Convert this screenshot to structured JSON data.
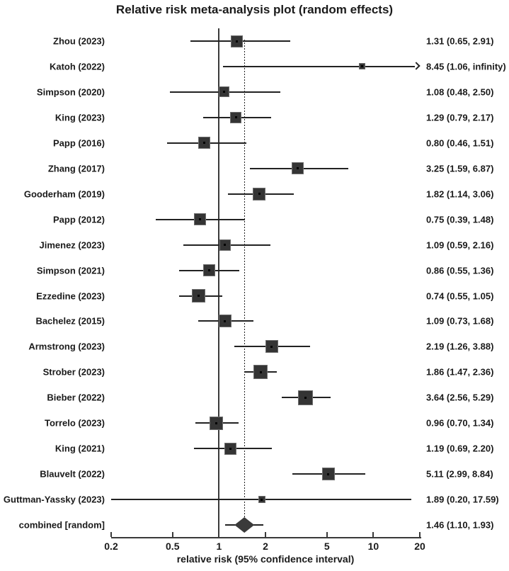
{
  "title": "Relative risk meta-analysis plot (random effects)",
  "colors": {
    "marker_fill": "#343434",
    "marker_border": "#6e6e6e",
    "line": "#222222",
    "text": "#1a1a1a",
    "background": "#ffffff"
  },
  "chart_data": {
    "type": "forest",
    "title": "Relative risk meta-analysis plot (random effects)",
    "xlabel": "relative risk (95% confidence interval)",
    "x_scale": "log",
    "x_range": [
      0.2,
      20
    ],
    "xticks": [
      "0.2",
      "0.5",
      "1",
      "2",
      "5",
      "10",
      "20"
    ],
    "xtick_values": [
      0.2,
      0.5,
      1,
      2,
      5,
      10,
      20
    ],
    "reference_line_x": 1,
    "pooled_dashed_line_x": 1.46,
    "studies": [
      {
        "label": "Zhou (2023)",
        "rr": 1.31,
        "ci_low": 0.65,
        "ci_high": 2.91,
        "value_text": "1.31 (0.65, 2.91)",
        "marker_size": 17,
        "kind": "study"
      },
      {
        "label": "Katoh (2022)",
        "rr": 8.45,
        "ci_low": 1.06,
        "ci_high": null,
        "ci_high_label": "infinity",
        "value_text": "8.45 (1.06, infinity)",
        "marker_size": 9,
        "kind": "study",
        "arrow_right": true
      },
      {
        "label": "Simpson (2020)",
        "rr": 1.08,
        "ci_low": 0.48,
        "ci_high": 2.5,
        "value_text": "1.08 (0.48, 2.50)",
        "marker_size": 15,
        "kind": "study"
      },
      {
        "label": "King (2023)",
        "rr": 1.29,
        "ci_low": 0.79,
        "ci_high": 2.17,
        "value_text": "1.29 (0.79, 2.17)",
        "marker_size": 16,
        "kind": "study"
      },
      {
        "label": "Papp (2016)",
        "rr": 0.8,
        "ci_low": 0.46,
        "ci_high": 1.51,
        "value_text": "0.80 (0.46, 1.51)",
        "marker_size": 17,
        "kind": "study"
      },
      {
        "label": "Zhang (2017)",
        "rr": 3.25,
        "ci_low": 1.59,
        "ci_high": 6.87,
        "value_text": "3.25 (1.59, 6.87)",
        "marker_size": 17,
        "kind": "study"
      },
      {
        "label": "Gooderham (2019)",
        "rr": 1.82,
        "ci_low": 1.14,
        "ci_high": 3.06,
        "value_text": "1.82 (1.14, 3.06)",
        "marker_size": 18,
        "kind": "study"
      },
      {
        "label": "Papp (2012)",
        "rr": 0.75,
        "ci_low": 0.39,
        "ci_high": 1.48,
        "value_text": "0.75 (0.39, 1.48)",
        "marker_size": 17,
        "kind": "study"
      },
      {
        "label": "Jimenez (2023)",
        "rr": 1.09,
        "ci_low": 0.59,
        "ci_high": 2.16,
        "value_text": "1.09 (0.59, 2.16)",
        "marker_size": 16,
        "kind": "study"
      },
      {
        "label": "Simpson (2021)",
        "rr": 0.86,
        "ci_low": 0.55,
        "ci_high": 1.36,
        "value_text": "0.86 (0.55, 1.36)",
        "marker_size": 17,
        "kind": "study"
      },
      {
        "label": "Ezzedine (2023)",
        "rr": 0.74,
        "ci_low": 0.55,
        "ci_high": 1.05,
        "value_text": "0.74 (0.55, 1.05)",
        "marker_size": 19,
        "kind": "study"
      },
      {
        "label": "Bachelez (2015)",
        "rr": 1.09,
        "ci_low": 0.73,
        "ci_high": 1.68,
        "value_text": "1.09 (0.73, 1.68)",
        "marker_size": 18,
        "kind": "study"
      },
      {
        "label": "Armstrong (2023)",
        "rr": 2.19,
        "ci_low": 1.26,
        "ci_high": 3.88,
        "value_text": "2.19 (1.26, 3.88)",
        "marker_size": 18,
        "kind": "study"
      },
      {
        "label": "Strober (2023)",
        "rr": 1.86,
        "ci_low": 1.47,
        "ci_high": 2.36,
        "value_text": "1.86 (1.47, 2.36)",
        "marker_size": 20,
        "kind": "study"
      },
      {
        "label": "Bieber (2022)",
        "rr": 3.64,
        "ci_low": 2.56,
        "ci_high": 5.29,
        "value_text": "3.64 (2.56, 5.29)",
        "marker_size": 21,
        "kind": "study"
      },
      {
        "label": "Torrelo (2023)",
        "rr": 0.96,
        "ci_low": 0.7,
        "ci_high": 1.34,
        "value_text": "0.96 (0.70, 1.34)",
        "marker_size": 19,
        "kind": "study"
      },
      {
        "label": "King (2021)",
        "rr": 1.19,
        "ci_low": 0.69,
        "ci_high": 2.2,
        "value_text": "1.19 (0.69, 2.20)",
        "marker_size": 17,
        "kind": "study"
      },
      {
        "label": "Blauvelt (2022)",
        "rr": 5.11,
        "ci_low": 2.99,
        "ci_high": 8.84,
        "value_text": "5.11 (2.99, 8.84)",
        "marker_size": 18,
        "kind": "study"
      },
      {
        "label": "Guttman-Yassky (2023)",
        "rr": 1.89,
        "ci_low": 0.2,
        "ci_high": 17.59,
        "value_text": "1.89 (0.20, 17.59)",
        "marker_size": 10,
        "kind": "study"
      },
      {
        "label": "combined [random]",
        "rr": 1.46,
        "ci_low": 1.1,
        "ci_high": 1.93,
        "value_text": "1.46 (1.10, 1.93)",
        "marker_size": 0,
        "kind": "diamond"
      }
    ]
  }
}
